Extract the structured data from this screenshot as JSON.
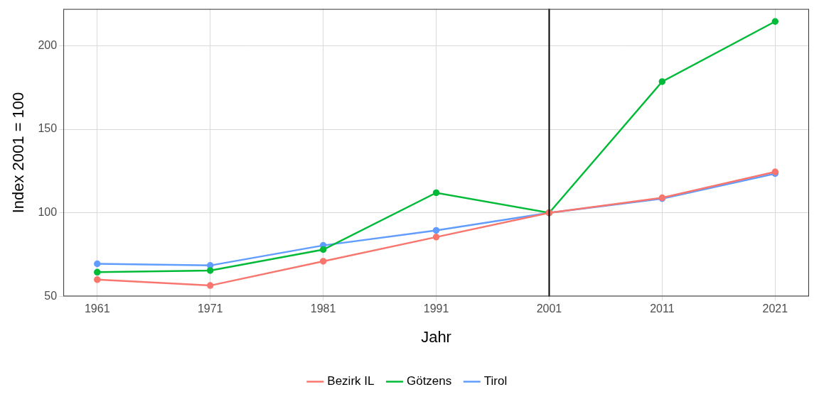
{
  "chart_data": {
    "type": "line",
    "x_label": "Jahr",
    "y_label": "Index 2001 = 100",
    "x": [
      1961,
      1971,
      1981,
      1991,
      2001,
      2011,
      2021
    ],
    "series": [
      {
        "name": "Bezirk IL",
        "color": "#F8766D",
        "values": [
          60,
          56.5,
          71,
          85.5,
          100,
          109,
          124.5
        ]
      },
      {
        "name": "Götzens",
        "color": "#00BA38",
        "values": [
          64.5,
          65.5,
          78,
          112,
          100,
          178.5,
          214.5
        ]
      },
      {
        "name": "Tirol",
        "color": "#619CFF",
        "values": [
          69.5,
          68.5,
          80.5,
          89.5,
          100,
          108.5,
          123.5
        ]
      }
    ],
    "xlim": [
      1958,
      2024
    ],
    "xticks": [
      1961,
      1971,
      1981,
      1991,
      2001,
      2011,
      2021
    ],
    "ylim": [
      50,
      222
    ],
    "yticks": [
      50,
      100,
      150,
      200
    ],
    "vline": 2001,
    "grid": true,
    "legend": "bottom",
    "marker": "circle"
  }
}
